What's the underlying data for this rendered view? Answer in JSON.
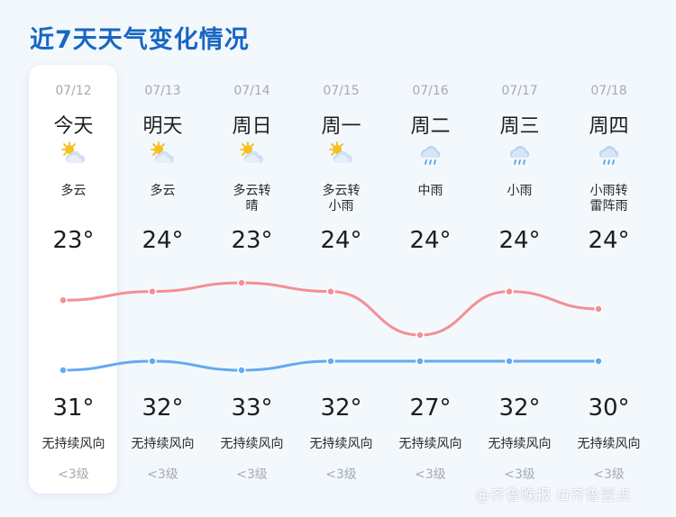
{
  "title": "近7天天气变化情况",
  "days": [
    {
      "date": "07/12",
      "day": "今天",
      "icon": "sun-cloud-icon",
      "condition": "多云",
      "high": "23°",
      "low": "31°",
      "wind": "无持续风向",
      "level": "<3级"
    },
    {
      "date": "07/13",
      "day": "明天",
      "icon": "sun-cloud-icon",
      "condition": "多云",
      "high": "24°",
      "low": "32°",
      "wind": "无持续风向",
      "level": "<3级"
    },
    {
      "date": "07/14",
      "day": "周日",
      "icon": "sun-cloud-icon",
      "condition": "多云转\n晴",
      "high": "23°",
      "low": "33°",
      "wind": "无持续风向",
      "level": "<3级"
    },
    {
      "date": "07/15",
      "day": "周一",
      "icon": "sun-cloud-icon",
      "condition": "多云转\n小雨",
      "high": "24°",
      "low": "32°",
      "wind": "无持续风向",
      "level": "<3级"
    },
    {
      "date": "07/16",
      "day": "周二",
      "icon": "rain-cloud-icon",
      "condition": "中雨",
      "high": "24°",
      "low": "27°",
      "wind": "无持续风向",
      "level": "<3级"
    },
    {
      "date": "07/17",
      "day": "周三",
      "icon": "rain-cloud-icon",
      "condition": "小雨",
      "high": "24°",
      "low": "32°",
      "wind": "无持续风向",
      "level": "<3级"
    },
    {
      "date": "07/18",
      "day": "周四",
      "icon": "rain-cloud-icon",
      "condition": "小雨转\n雷阵雨",
      "high": "24°",
      "low": "30°",
      "wind": "无持续风向",
      "level": "<3级"
    }
  ],
  "colors": {
    "title": "#1766c2",
    "upper_line": "#f48f94",
    "lower_line": "#63aaf0",
    "card": "#ffffff",
    "background": "#f3f8fd"
  },
  "watermark": "@齐鲁晚报 ⊡齐鲁壹点"
}
